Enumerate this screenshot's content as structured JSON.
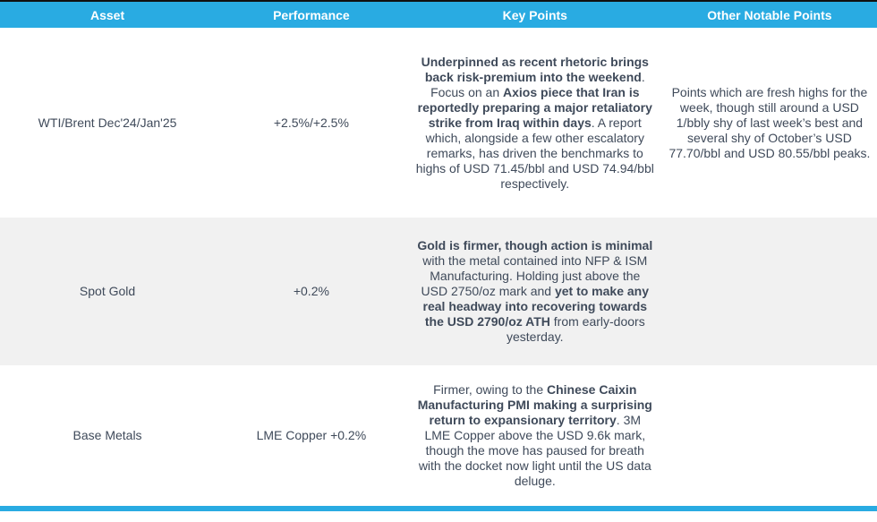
{
  "colors": {
    "header_bg": "#29ABE2",
    "header_text": "#FFFFFF",
    "row_alt_bg": "#F1F1F1",
    "body_text": "#3F4A5A",
    "accent_bar": "#29ABE2",
    "top_border": "#111111"
  },
  "table": {
    "columns": [
      {
        "label": "Asset"
      },
      {
        "label": "Performance"
      },
      {
        "label": "Key Points"
      },
      {
        "label": "Other Notable Points"
      }
    ],
    "rows": [
      {
        "asset": "WTI/Brent Dec'24/Jan'25",
        "performance": "+2.5%/+2.5%",
        "key_points": [
          {
            "text": "Underpinned as recent rhetoric brings back risk-premium into the weekend",
            "bold": true
          },
          {
            "text": ". Focus on an ",
            "bold": false
          },
          {
            "text": "Axios piece that Iran is reportedly preparing a major retaliatory strike from Iraq within days",
            "bold": true
          },
          {
            "text": ". A report which, alongside a few other escalatory remarks, has driven the benchmarks to highs of USD 71.45/bbl and USD 74.94/bbl respectively.",
            "bold": false
          }
        ],
        "other_points": [
          {
            "text": "Points which are fresh highs for the week, though still around a USD 1/bbly shy of last week’s best and several shy of October’s USD 77.70/bbl and USD 80.55/bbl peaks.",
            "bold": false
          }
        ]
      },
      {
        "asset": "Spot Gold",
        "performance": "+0.2%",
        "key_points": [
          {
            "text": "Gold is firmer, though action is minimal",
            "bold": true
          },
          {
            "text": " with the metal contained into NFP & ISM Manufacturing. Holding just above the USD 2750/oz mark and ",
            "bold": false
          },
          {
            "text": "yet to make any real headway into recovering towards the USD 2790/oz ATH",
            "bold": true
          },
          {
            "text": " from early-doors yesterday.",
            "bold": false
          }
        ],
        "other_points": []
      },
      {
        "asset": "Base Metals",
        "performance": "LME Copper +0.2%",
        "key_points": [
          {
            "text": "Firmer, owing to the ",
            "bold": false
          },
          {
            "text": "Chinese Caixin Manufacturing PMI making a surprising return to expansionary territory",
            "bold": true
          },
          {
            "text": ". 3M LME Copper above the USD 9.6k mark, though the move has paused for breath with the docket now light until the US data deluge.",
            "bold": false
          }
        ],
        "other_points": []
      }
    ]
  }
}
